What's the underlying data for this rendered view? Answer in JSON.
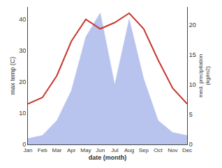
{
  "chart_data": {
    "type": "line",
    "categories": [
      "Jan",
      "Feb",
      "Mar",
      "Apr",
      "May",
      "Jun",
      "Jul",
      "Aug",
      "Sep",
      "Oct",
      "Nov",
      "Dec"
    ],
    "xlabel": "date (month)",
    "ylabel": "max temp (C)",
    "y2label": "med. precipitation\n(kg/m2)",
    "series": [
      {
        "type": "area",
        "axis": "y2",
        "color": "#b8c4ee",
        "values": [
          1.0,
          1.5,
          4,
          9,
          18,
          22,
          10,
          21,
          11,
          4,
          2,
          1.5
        ]
      },
      {
        "type": "line",
        "color": "#c8372d",
        "values": [
          13,
          15,
          22,
          33,
          40,
          37,
          39,
          42,
          37,
          27,
          18,
          13
        ]
      }
    ],
    "ylim": [
      0,
      44
    ],
    "yticks": [
      0,
      10,
      20,
      30,
      40
    ],
    "y2lim": [
      0,
      23
    ],
    "y2ticks": [
      0,
      5,
      10,
      15,
      20
    ],
    "grid": false
  }
}
